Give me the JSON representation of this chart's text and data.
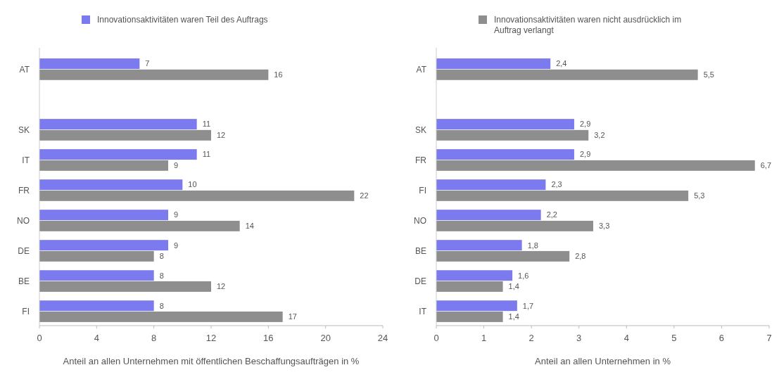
{
  "chart_data": [
    {
      "type": "bar",
      "orientation": "horizontal",
      "categories": [
        "AT",
        null,
        "SK",
        "IT",
        "FR",
        "NO",
        "DE",
        "BE",
        "FI"
      ],
      "series": [
        {
          "name": "Innovationsaktivitäten waren Teil des Auftrags",
          "color": "#7b7bef",
          "values": [
            7,
            null,
            11,
            11,
            10,
            9,
            9,
            8,
            8
          ],
          "value_labels": [
            "7",
            null,
            "11",
            "11",
            "10",
            "9",
            "9",
            "8",
            "8"
          ]
        },
        {
          "name": "Innovationsaktivitäten waren nicht ausdrücklich im Auftrag verlangt",
          "color": "#8e8e8e",
          "values": [
            16,
            null,
            12,
            9,
            22,
            14,
            8,
            12,
            17
          ],
          "value_labels": [
            "16",
            null,
            "12",
            "9",
            "22",
            "14",
            "8",
            "12",
            "17"
          ]
        }
      ],
      "xlim": [
        0,
        24
      ],
      "xticks": [
        0,
        4,
        8,
        12,
        16,
        20,
        24
      ],
      "xlabel": "Anteil an allen Unternehmen mit öffentlichen Beschaffungsaufträgen in %",
      "legend": "top",
      "grid": false
    },
    {
      "type": "bar",
      "orientation": "horizontal",
      "categories": [
        "AT",
        null,
        "SK",
        "FR",
        "FI",
        "NO",
        "BE",
        "DE",
        "IT"
      ],
      "series": [
        {
          "color": "#7b7bef",
          "values": [
            2.4,
            null,
            2.9,
            2.9,
            2.3,
            2.2,
            1.8,
            1.6,
            1.7
          ],
          "value_labels": [
            "2,4",
            null,
            "2,9",
            "2,9",
            "2,3",
            "2,2",
            "1,8",
            "1,6",
            "1,7"
          ]
        },
        {
          "color": "#8e8e8e",
          "values": [
            5.5,
            null,
            3.2,
            6.7,
            5.3,
            3.3,
            2.8,
            1.4,
            1.4
          ],
          "value_labels": [
            "5,5",
            null,
            "3,2",
            "6,7",
            "5,3",
            "3,3",
            "2,8",
            "1,4",
            "1,4"
          ]
        }
      ],
      "xlim": [
        0,
        7
      ],
      "xticks": [
        0,
        1,
        2,
        3,
        4,
        5,
        6,
        7
      ],
      "xlabel": "Anteil an allen Unternehmen in %",
      "grid": false
    }
  ]
}
